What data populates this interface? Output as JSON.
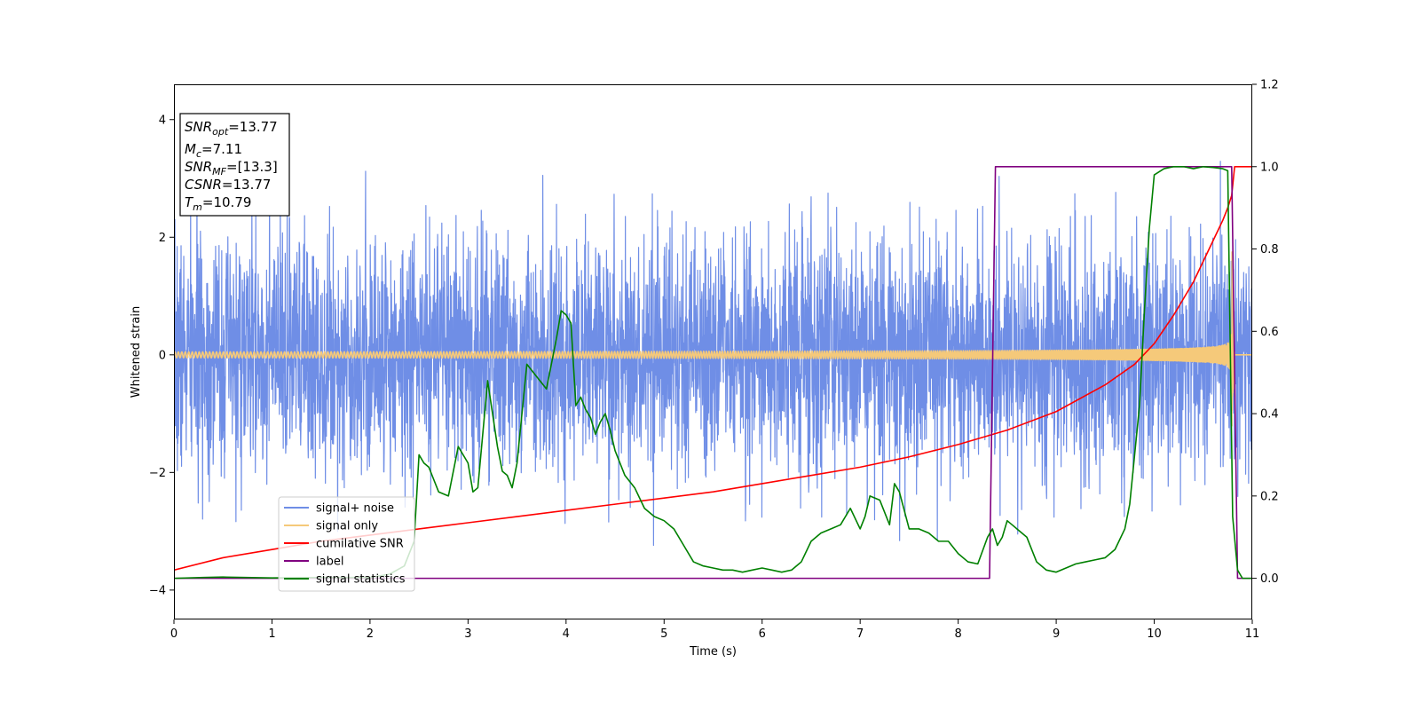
{
  "chart_data": {
    "type": "line",
    "title": "",
    "xlabel": "Time (s)",
    "ylabel": "Whitened strain",
    "y2label": "",
    "xlim": [
      0,
      11
    ],
    "ylim": [
      -4.5,
      4.6
    ],
    "y2lim": [
      -0.1,
      1.2
    ],
    "x_ticks": [
      0,
      1,
      2,
      3,
      4,
      5,
      6,
      7,
      8,
      9,
      10,
      11
    ],
    "y_ticks": [
      -4,
      -2,
      0,
      2,
      4
    ],
    "y2_ticks": [
      0.0,
      0.2,
      0.4,
      0.6,
      0.8,
      1.0,
      1.2
    ],
    "x_tick_labels": [
      "0",
      "1",
      "2",
      "3",
      "4",
      "5",
      "6",
      "7",
      "8",
      "9",
      "10",
      "11"
    ],
    "y_tick_labels": [
      "−4",
      "−2",
      "0",
      "2",
      "4"
    ],
    "y2_tick_labels": [
      "0.0",
      "0.2",
      "0.4",
      "0.6",
      "0.8",
      "1.0",
      "1.2"
    ],
    "grid": false,
    "legend_position": "lower-left",
    "info_box": {
      "position": "top-left",
      "lines": [
        {
          "sym": "SNR",
          "sub": "opt",
          "value": "=13.77"
        },
        {
          "sym": "M",
          "sub": "c",
          "value": "=7.11"
        },
        {
          "sym": "SNR",
          "sub": "MF",
          "value": "=[13.3]"
        },
        {
          "sym": "CSNR",
          "sub": "",
          "value": "=13.77"
        },
        {
          "sym": "T",
          "sub": "m",
          "value": "=10.79"
        }
      ]
    },
    "series": [
      {
        "name": "signal+ noise",
        "axis": "left",
        "color": "#6f8ee6",
        "kind": "noise",
        "noise_sigma": 1.0,
        "samples": 4400,
        "seed": 7
      },
      {
        "name": "signal only",
        "axis": "left",
        "color": "#f5c97a",
        "kind": "chirp",
        "merger_time": 10.79,
        "end_time": 10.82,
        "base_amplitude": 0.05,
        "peak_amplitude": 2.0,
        "start_frequency": 28
      },
      {
        "name": "cumilative SNR",
        "axis": "right",
        "color": "#ff0000",
        "x": [
          0,
          0.5,
          1,
          1.5,
          2,
          2.5,
          3,
          3.5,
          4,
          4.5,
          5,
          5.5,
          6,
          6.5,
          7,
          7.5,
          8,
          8.5,
          9,
          9.5,
          9.8,
          10,
          10.2,
          10.4,
          10.6,
          10.7,
          10.75,
          10.79,
          10.82,
          11
        ],
        "y": [
          0.02,
          0.05,
          0.07,
          0.09,
          0.105,
          0.12,
          0.135,
          0.15,
          0.165,
          0.18,
          0.195,
          0.21,
          0.23,
          0.25,
          0.27,
          0.295,
          0.325,
          0.36,
          0.405,
          0.47,
          0.52,
          0.57,
          0.64,
          0.72,
          0.82,
          0.87,
          0.9,
          0.93,
          1.0,
          1.0
        ]
      },
      {
        "name": "label",
        "axis": "right",
        "color": "#800080",
        "x": [
          0,
          8.32,
          8.38,
          10.79,
          10.85,
          11
        ],
        "y": [
          0,
          0,
          1,
          1,
          0,
          0
        ]
      },
      {
        "name": "signal statistics",
        "axis": "right",
        "color": "#008000",
        "x": [
          0,
          0.3,
          0.5,
          1,
          1.5,
          2,
          2.2,
          2.35,
          2.45,
          2.5,
          2.55,
          2.6,
          2.7,
          2.8,
          2.9,
          3.0,
          3.05,
          3.1,
          3.2,
          3.3,
          3.35,
          3.4,
          3.45,
          3.5,
          3.55,
          3.6,
          3.7,
          3.8,
          3.9,
          3.95,
          4.0,
          4.05,
          4.1,
          4.15,
          4.2,
          4.25,
          4.3,
          4.35,
          4.4,
          4.45,
          4.5,
          4.6,
          4.7,
          4.8,
          4.9,
          5.0,
          5.1,
          5.2,
          5.3,
          5.4,
          5.5,
          5.6,
          5.7,
          5.8,
          5.9,
          6.0,
          6.1,
          6.2,
          6.3,
          6.4,
          6.5,
          6.6,
          6.7,
          6.8,
          6.9,
          7.0,
          7.05,
          7.1,
          7.2,
          7.3,
          7.35,
          7.4,
          7.5,
          7.6,
          7.7,
          7.8,
          7.9,
          8.0,
          8.1,
          8.2,
          8.3,
          8.35,
          8.4,
          8.45,
          8.5,
          8.55,
          8.6,
          8.65,
          8.7,
          8.8,
          8.9,
          9.0,
          9.1,
          9.2,
          9.3,
          9.4,
          9.5,
          9.6,
          9.7,
          9.75,
          9.8,
          9.85,
          9.9,
          9.95,
          10.0,
          10.1,
          10.2,
          10.3,
          10.4,
          10.5,
          10.6,
          10.7,
          10.75,
          10.8,
          10.85,
          10.9,
          11.0
        ],
        "y": [
          0,
          0.002,
          0.003,
          0.001,
          0.002,
          0.002,
          0.01,
          0.03,
          0.09,
          0.3,
          0.28,
          0.27,
          0.21,
          0.2,
          0.32,
          0.28,
          0.21,
          0.22,
          0.48,
          0.32,
          0.26,
          0.25,
          0.22,
          0.28,
          0.4,
          0.52,
          0.49,
          0.46,
          0.58,
          0.65,
          0.64,
          0.62,
          0.42,
          0.44,
          0.41,
          0.39,
          0.35,
          0.38,
          0.4,
          0.36,
          0.31,
          0.25,
          0.22,
          0.17,
          0.15,
          0.14,
          0.12,
          0.08,
          0.04,
          0.03,
          0.025,
          0.02,
          0.02,
          0.015,
          0.02,
          0.025,
          0.02,
          0.015,
          0.02,
          0.04,
          0.09,
          0.11,
          0.12,
          0.13,
          0.17,
          0.12,
          0.15,
          0.2,
          0.19,
          0.13,
          0.23,
          0.21,
          0.12,
          0.12,
          0.11,
          0.09,
          0.09,
          0.06,
          0.04,
          0.035,
          0.1,
          0.12,
          0.08,
          0.1,
          0.14,
          0.13,
          0.12,
          0.11,
          0.1,
          0.04,
          0.02,
          0.015,
          0.025,
          0.035,
          0.04,
          0.045,
          0.05,
          0.07,
          0.12,
          0.18,
          0.3,
          0.42,
          0.65,
          0.85,
          0.98,
          0.995,
          1.0,
          1.0,
          0.995,
          1.0,
          0.998,
          0.995,
          0.99,
          0.15,
          0.02,
          0.0,
          0.0
        ]
      }
    ]
  }
}
